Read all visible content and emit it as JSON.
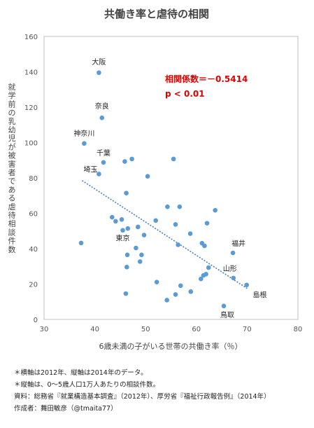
{
  "chart_data": {
    "type": "scatter",
    "title": "共働き率と虐待の相関",
    "xlabel": "6歳未満の子がいる世帯の共働き率（％）",
    "ylabel": "就学前の乳幼児が被害者である虐待相談件数",
    "xlim": [
      30,
      80
    ],
    "ylim": [
      0,
      160
    ],
    "xticks": [
      "30",
      "40",
      "50",
      "60",
      "70",
      "80"
    ],
    "yticks": [
      "0",
      "20",
      "40",
      "60",
      "80",
      "100",
      "120",
      "140",
      "160"
    ],
    "grid": false,
    "trendline": {
      "type": "linear",
      "x": [
        37.5,
        70
      ],
      "y": [
        78.5,
        17.5
      ]
    },
    "correlation_label": "相関係数＝－0.5414",
    "p_label": "p < 0.01",
    "colors": {
      "point": "#5b9bd5",
      "trend": "#4a7ebf",
      "annotation": "#e00000"
    },
    "points": [
      {
        "x": 40.8,
        "y": 139.5,
        "label": "大阪"
      },
      {
        "x": 41.4,
        "y": 114,
        "label": "奈良"
      },
      {
        "x": 37.9,
        "y": 99.5,
        "label": "神奈川"
      },
      {
        "x": 41.7,
        "y": 88.8,
        "label": "千葉"
      },
      {
        "x": 40.8,
        "y": 82.2,
        "label": "埼玉"
      },
      {
        "x": 37.3,
        "y": 43.2,
        "label": ""
      },
      {
        "x": 45.9,
        "y": 89.3,
        "label": ""
      },
      {
        "x": 47.3,
        "y": 90.7,
        "label": ""
      },
      {
        "x": 55.5,
        "y": 90.7,
        "label": ""
      },
      {
        "x": 50.4,
        "y": 80.9,
        "label": ""
      },
      {
        "x": 46.2,
        "y": 71.4,
        "label": ""
      },
      {
        "x": 54.3,
        "y": 63.7,
        "label": ""
      },
      {
        "x": 56.7,
        "y": 63.7,
        "label": ""
      },
      {
        "x": 63.7,
        "y": 61.7,
        "label": ""
      },
      {
        "x": 43.4,
        "y": 57.8,
        "label": ""
      },
      {
        "x": 45.3,
        "y": 56.5,
        "label": ""
      },
      {
        "x": 44.1,
        "y": 55.5,
        "label": ""
      },
      {
        "x": 52.0,
        "y": 55.9,
        "label": ""
      },
      {
        "x": 62.1,
        "y": 54.4,
        "label": ""
      },
      {
        "x": 55.9,
        "y": 53.7,
        "label": ""
      },
      {
        "x": 45.5,
        "y": 50.4,
        "label": "東京"
      },
      {
        "x": 46.5,
        "y": 51.4,
        "label": ""
      },
      {
        "x": 48.5,
        "y": 52.3,
        "label": ""
      },
      {
        "x": 49.7,
        "y": 47.7,
        "label": ""
      },
      {
        "x": 58.8,
        "y": 48.5,
        "label": ""
      },
      {
        "x": 56.4,
        "y": 42.2,
        "label": ""
      },
      {
        "x": 61.1,
        "y": 43.1,
        "label": ""
      },
      {
        "x": 61.6,
        "y": 41.6,
        "label": ""
      },
      {
        "x": 48.1,
        "y": 40.4,
        "label": ""
      },
      {
        "x": 46.4,
        "y": 36.5,
        "label": ""
      },
      {
        "x": 49.2,
        "y": 36.5,
        "label": ""
      },
      {
        "x": 48.9,
        "y": 32.7,
        "label": ""
      },
      {
        "x": 46.3,
        "y": 29.6,
        "label": ""
      },
      {
        "x": 67.2,
        "y": 37.6,
        "label": "福井"
      },
      {
        "x": 62.4,
        "y": 29.3,
        "label": ""
      },
      {
        "x": 61.9,
        "y": 25.6,
        "label": ""
      },
      {
        "x": 61.4,
        "y": 24.9,
        "label": ""
      },
      {
        "x": 60.9,
        "y": 22.9,
        "label": ""
      },
      {
        "x": 67.3,
        "y": 23.4,
        "label": "山形"
      },
      {
        "x": 69.9,
        "y": 19.5,
        "label": ""
      },
      {
        "x": 52.2,
        "y": 21.1,
        "label": ""
      },
      {
        "x": 56.9,
        "y": 19.1,
        "label": ""
      },
      {
        "x": 46.1,
        "y": 14.6,
        "label": ""
      },
      {
        "x": 55.9,
        "y": 14.1,
        "label": ""
      },
      {
        "x": 58.9,
        "y": 15.7,
        "label": ""
      },
      {
        "x": 54.2,
        "y": 10.9,
        "label": ""
      },
      {
        "x": 65.4,
        "y": 7.6,
        "label": "鳥取"
      }
    ],
    "extra_labels": [
      {
        "text": "島根",
        "x": 72.5,
        "y": 12.5
      }
    ]
  },
  "notes": [
    "＊横軸は2012年、縦軸は2014年のデータ。",
    "＊縦軸は、0～5歳人口1万人あたりの相談件数。",
    "資料：総務省『就業構造基本調査』（2012年）、厚労省『福祉行政報告例』（2014年）",
    "作成者：舞田敏彦（@tmaita77）"
  ]
}
